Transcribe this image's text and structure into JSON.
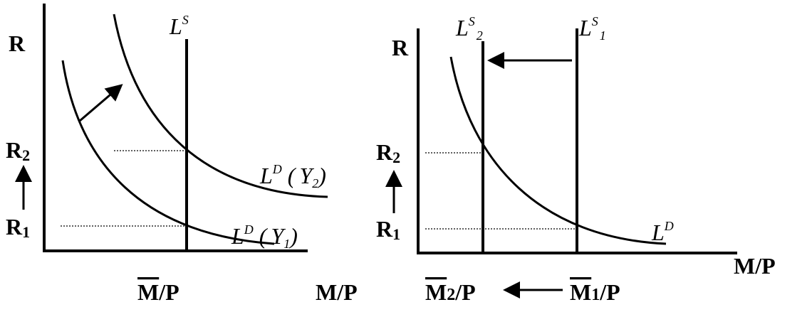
{
  "left": {
    "y_axis": "R",
    "x_axis": "M/P",
    "supply": {
      "base": "L",
      "sup": "S"
    },
    "r2": {
      "base": "R",
      "sub": "2"
    },
    "r1": {
      "base": "R",
      "sub": "1"
    },
    "demand_y2": {
      "base": "L",
      "sup": "D",
      "open": "(",
      "var": "Y",
      "sub": "2",
      "close": ")"
    },
    "demand_y1": {
      "base": "L",
      "sup": "D",
      "open": "(",
      "var": "Y",
      "sub": "1",
      "close": ")"
    },
    "money": {
      "base": "M",
      "rest": "/P"
    }
  },
  "right": {
    "y_axis": "R",
    "x_axis": "M/P",
    "supply_2": {
      "base": "L",
      "sup": "S",
      "sub": "2"
    },
    "supply_1": {
      "base": "L",
      "sup": "S",
      "sub": "1"
    },
    "r2": {
      "base": "R",
      "sub": "2"
    },
    "r1": {
      "base": "R",
      "sub": "1"
    },
    "demand": {
      "base": "L",
      "sup": "D"
    },
    "money_2": {
      "base": "M",
      "sub": "2",
      "rest": "/P"
    },
    "money_1": {
      "base": "M",
      "sub": "1",
      "rest": "/P"
    }
  }
}
